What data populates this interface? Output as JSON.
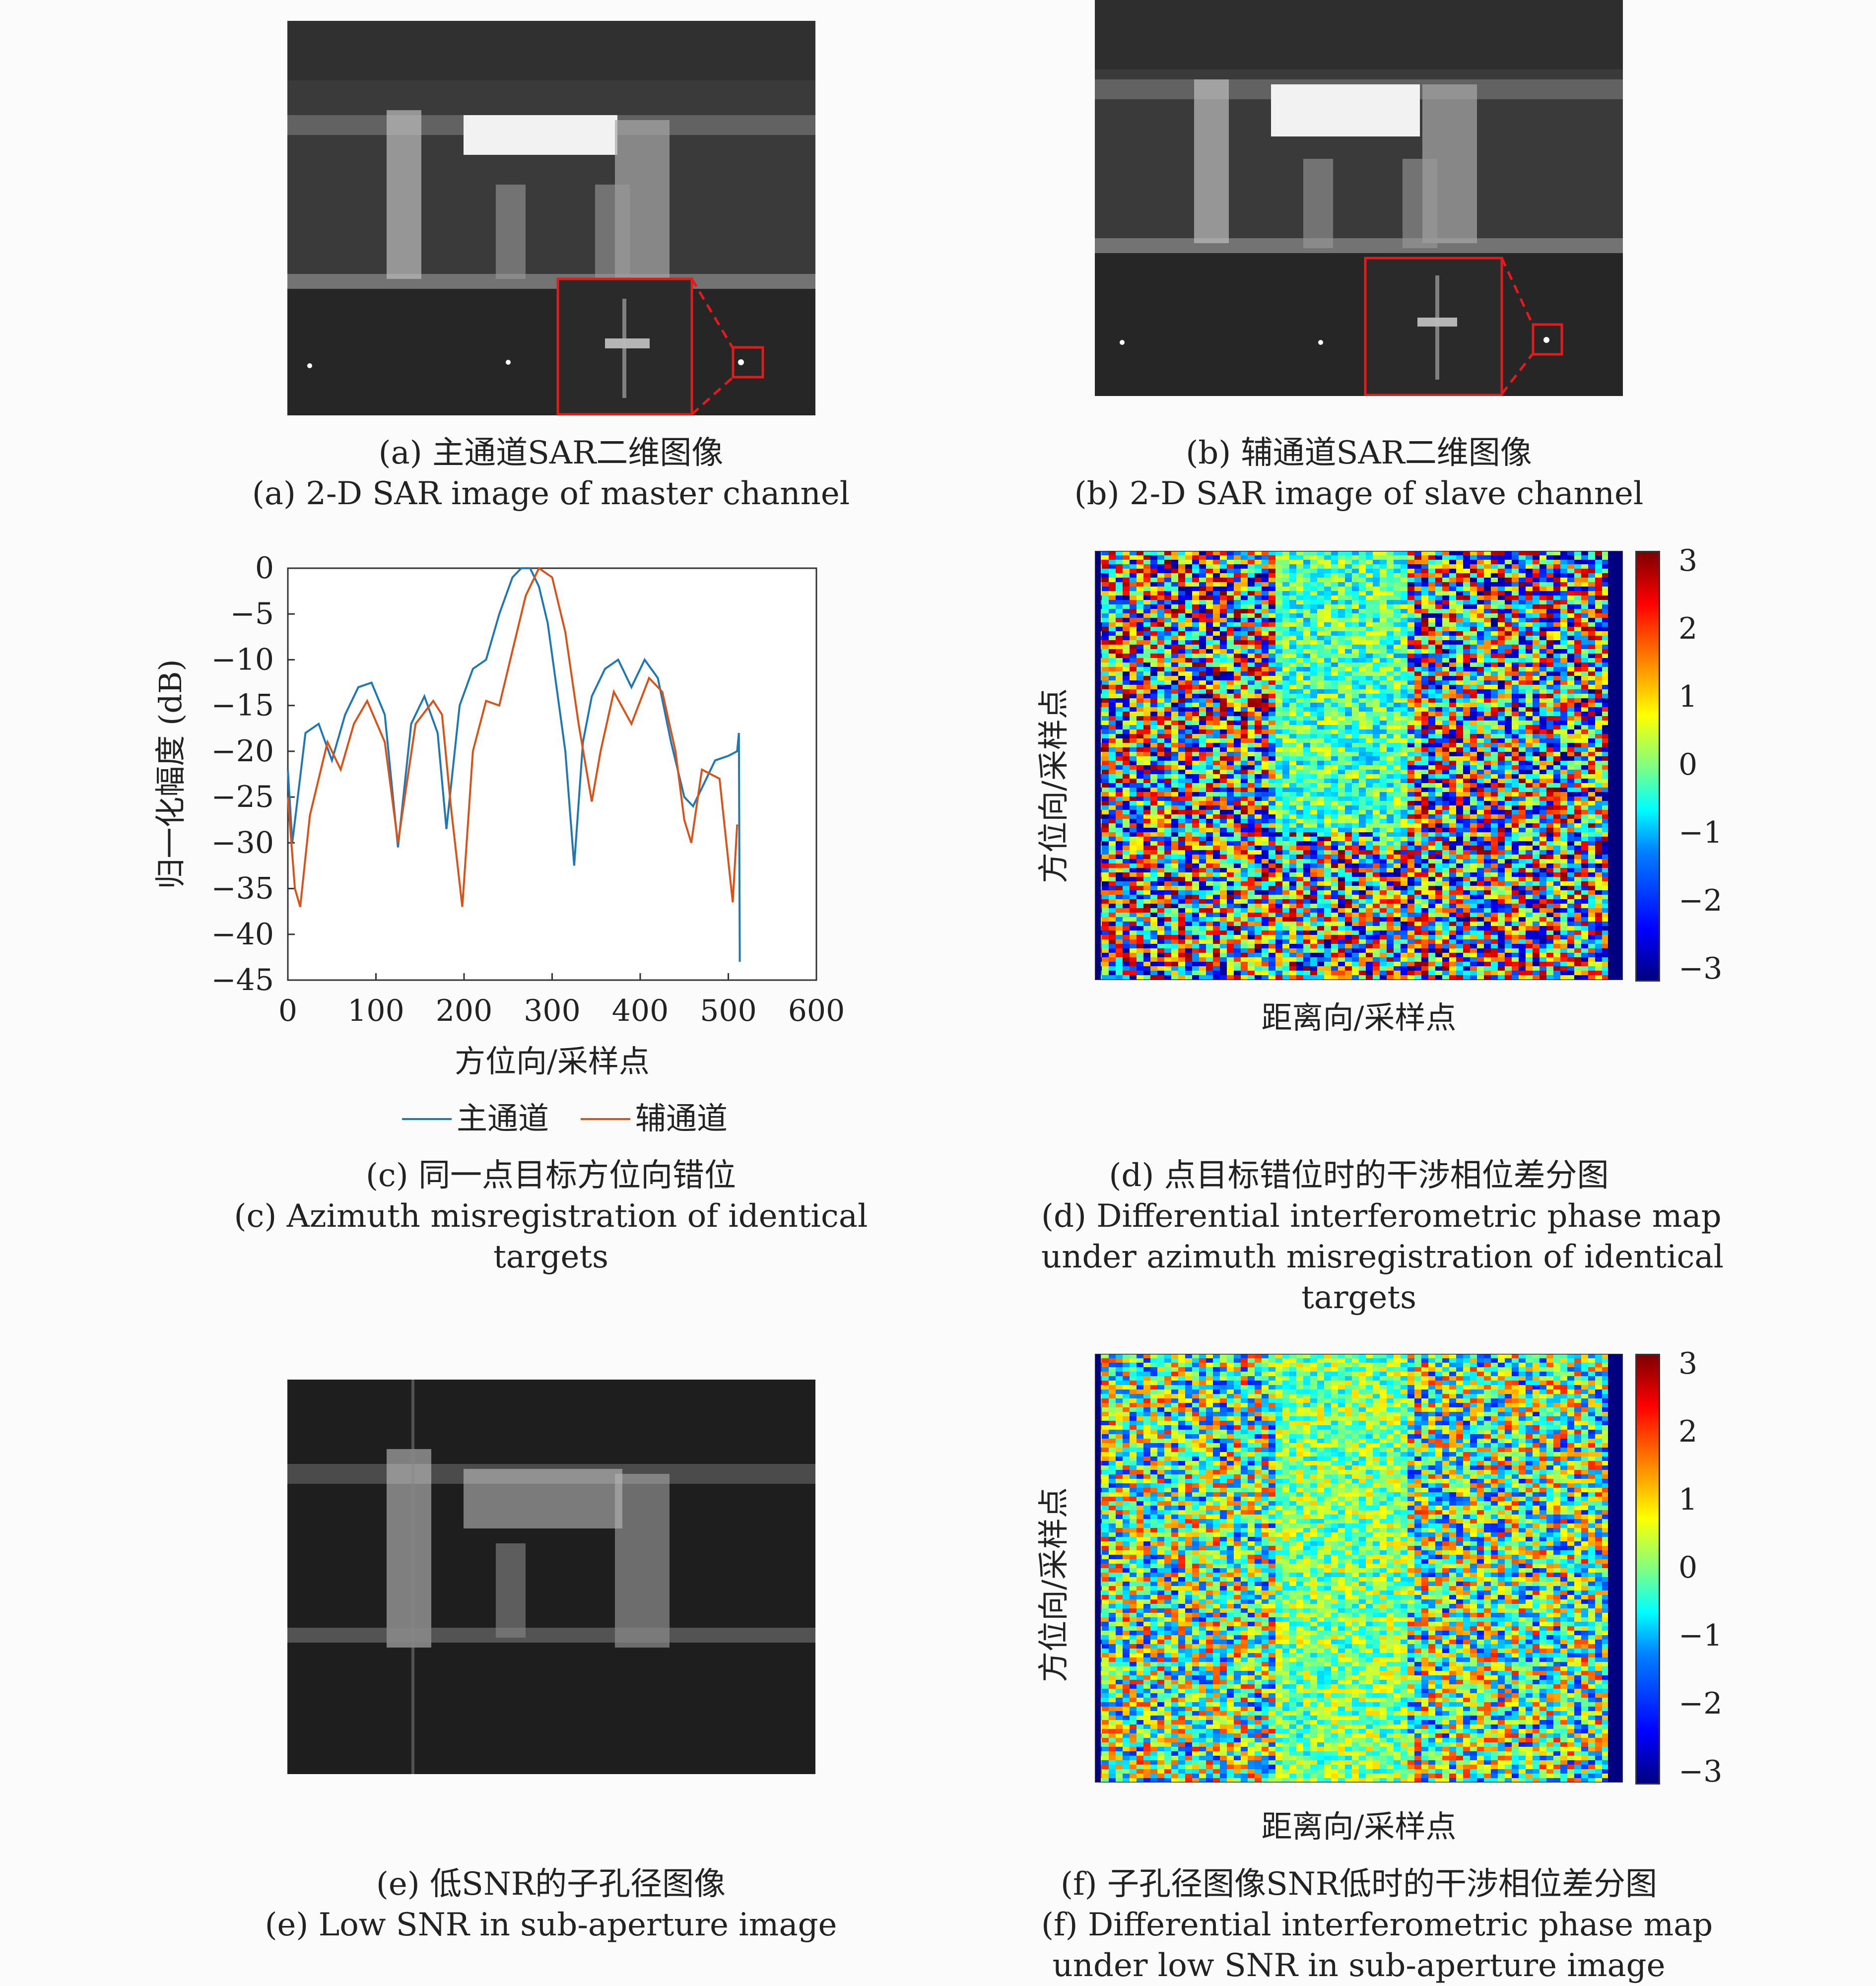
{
  "panels": {
    "a": {
      "caption_cn": "(a) 主通道SAR二维图像",
      "caption_en": "(a) 2-D SAR image of master channel"
    },
    "b": {
      "caption_cn": "(b) 辅通道SAR二维图像",
      "caption_en": "(b) 2-D SAR image of slave channel"
    },
    "c": {
      "caption_cn": "(c) 同一点目标方位向错位",
      "caption_en_1": "(c) Azimuth misregistration of identical",
      "caption_en_2": "targets"
    },
    "d": {
      "caption_cn": "(d) 点目标错位时的干涉相位差分图",
      "caption_en_1": "(d) Differential interferometric phase map",
      "caption_en_2": "under azimuth misregistration of identical",
      "caption_en_3": "targets",
      "xlabel": "距离向/采样点",
      "ylabel": "方位向/采样点"
    },
    "e": {
      "caption_cn": "(e) 低SNR的子孔径图像",
      "caption_en": "(e) Low SNR in sub-aperture image"
    },
    "f": {
      "caption_cn": "(f) 子孔径图像SNR低时的干涉相位差分图",
      "caption_en_1": "(f) Differential interferometric phase map",
      "caption_en_2": "under low SNR in sub-aperture image",
      "xlabel": "距离向/采样点",
      "ylabel": "方位向/采样点"
    }
  },
  "colorbar": {
    "ticks": [
      "3",
      "2",
      "1",
      "0",
      "−1",
      "−2",
      "−3"
    ],
    "range": [
      -3,
      3
    ],
    "colormap": "jet"
  },
  "colors": {
    "master": "#1f77b4",
    "slave": "#d95319",
    "highlight": "#e21b1b"
  },
  "chart_data": {
    "type": "line",
    "xlabel": "方位向/采样点",
    "ylabel": "归一化幅度 (dB)",
    "xlim": [
      0,
      600
    ],
    "ylim": [
      -45,
      0
    ],
    "xticks": [
      "0",
      "100",
      "200",
      "300",
      "400",
      "500",
      "600"
    ],
    "yticks": [
      "0",
      "−5",
      "−10",
      "−15",
      "−20",
      "−25",
      "−30",
      "−35",
      "−40",
      "−45"
    ],
    "legend_position": "bottom",
    "series": [
      {
        "name": "主通道",
        "color": "#1f77b4",
        "x": [
          0,
          5,
          10,
          20,
          35,
          50,
          65,
          80,
          95,
          110,
          125,
          140,
          155,
          170,
          180,
          195,
          210,
          225,
          240,
          255,
          265,
          275,
          285,
          295,
          305,
          315,
          325,
          335,
          345,
          360,
          375,
          390,
          405,
          420,
          435,
          450,
          460,
          470,
          485,
          500,
          510,
          512,
          513
        ],
        "y": [
          -22,
          -30,
          -26,
          -18,
          -17,
          -21,
          -16,
          -13,
          -12.5,
          -16,
          -30.5,
          -17,
          -14,
          -18,
          -28.5,
          -15,
          -11,
          -10,
          -5,
          -1,
          0,
          0,
          -2,
          -6,
          -13,
          -20,
          -32.5,
          -19,
          -14,
          -11,
          -10,
          -13,
          -10,
          -12,
          -19,
          -25,
          -26,
          -24,
          -21,
          -20.5,
          -20,
          -18,
          -43
        ]
      },
      {
        "name": "辅通道",
        "color": "#d95319",
        "x": [
          0,
          8,
          14,
          25,
          45,
          60,
          75,
          90,
          110,
          125,
          145,
          165,
          175,
          185,
          198,
          210,
          225,
          240,
          255,
          270,
          285,
          300,
          315,
          330,
          345,
          355,
          370,
          390,
          410,
          425,
          440,
          450,
          458,
          470,
          490,
          500,
          505,
          510
        ],
        "y": [
          -25,
          -35,
          -37,
          -27,
          -19,
          -22,
          -17,
          -14.5,
          -19,
          -30,
          -17,
          -14.5,
          -16,
          -26,
          -37,
          -20,
          -14.5,
          -15,
          -9,
          -3,
          0,
          -1,
          -7,
          -17,
          -25.5,
          -20,
          -13.5,
          -17,
          -12,
          -13.5,
          -20,
          -27.5,
          -30,
          -22,
          -23,
          -32,
          -36.5,
          -28
        ]
      }
    ]
  }
}
